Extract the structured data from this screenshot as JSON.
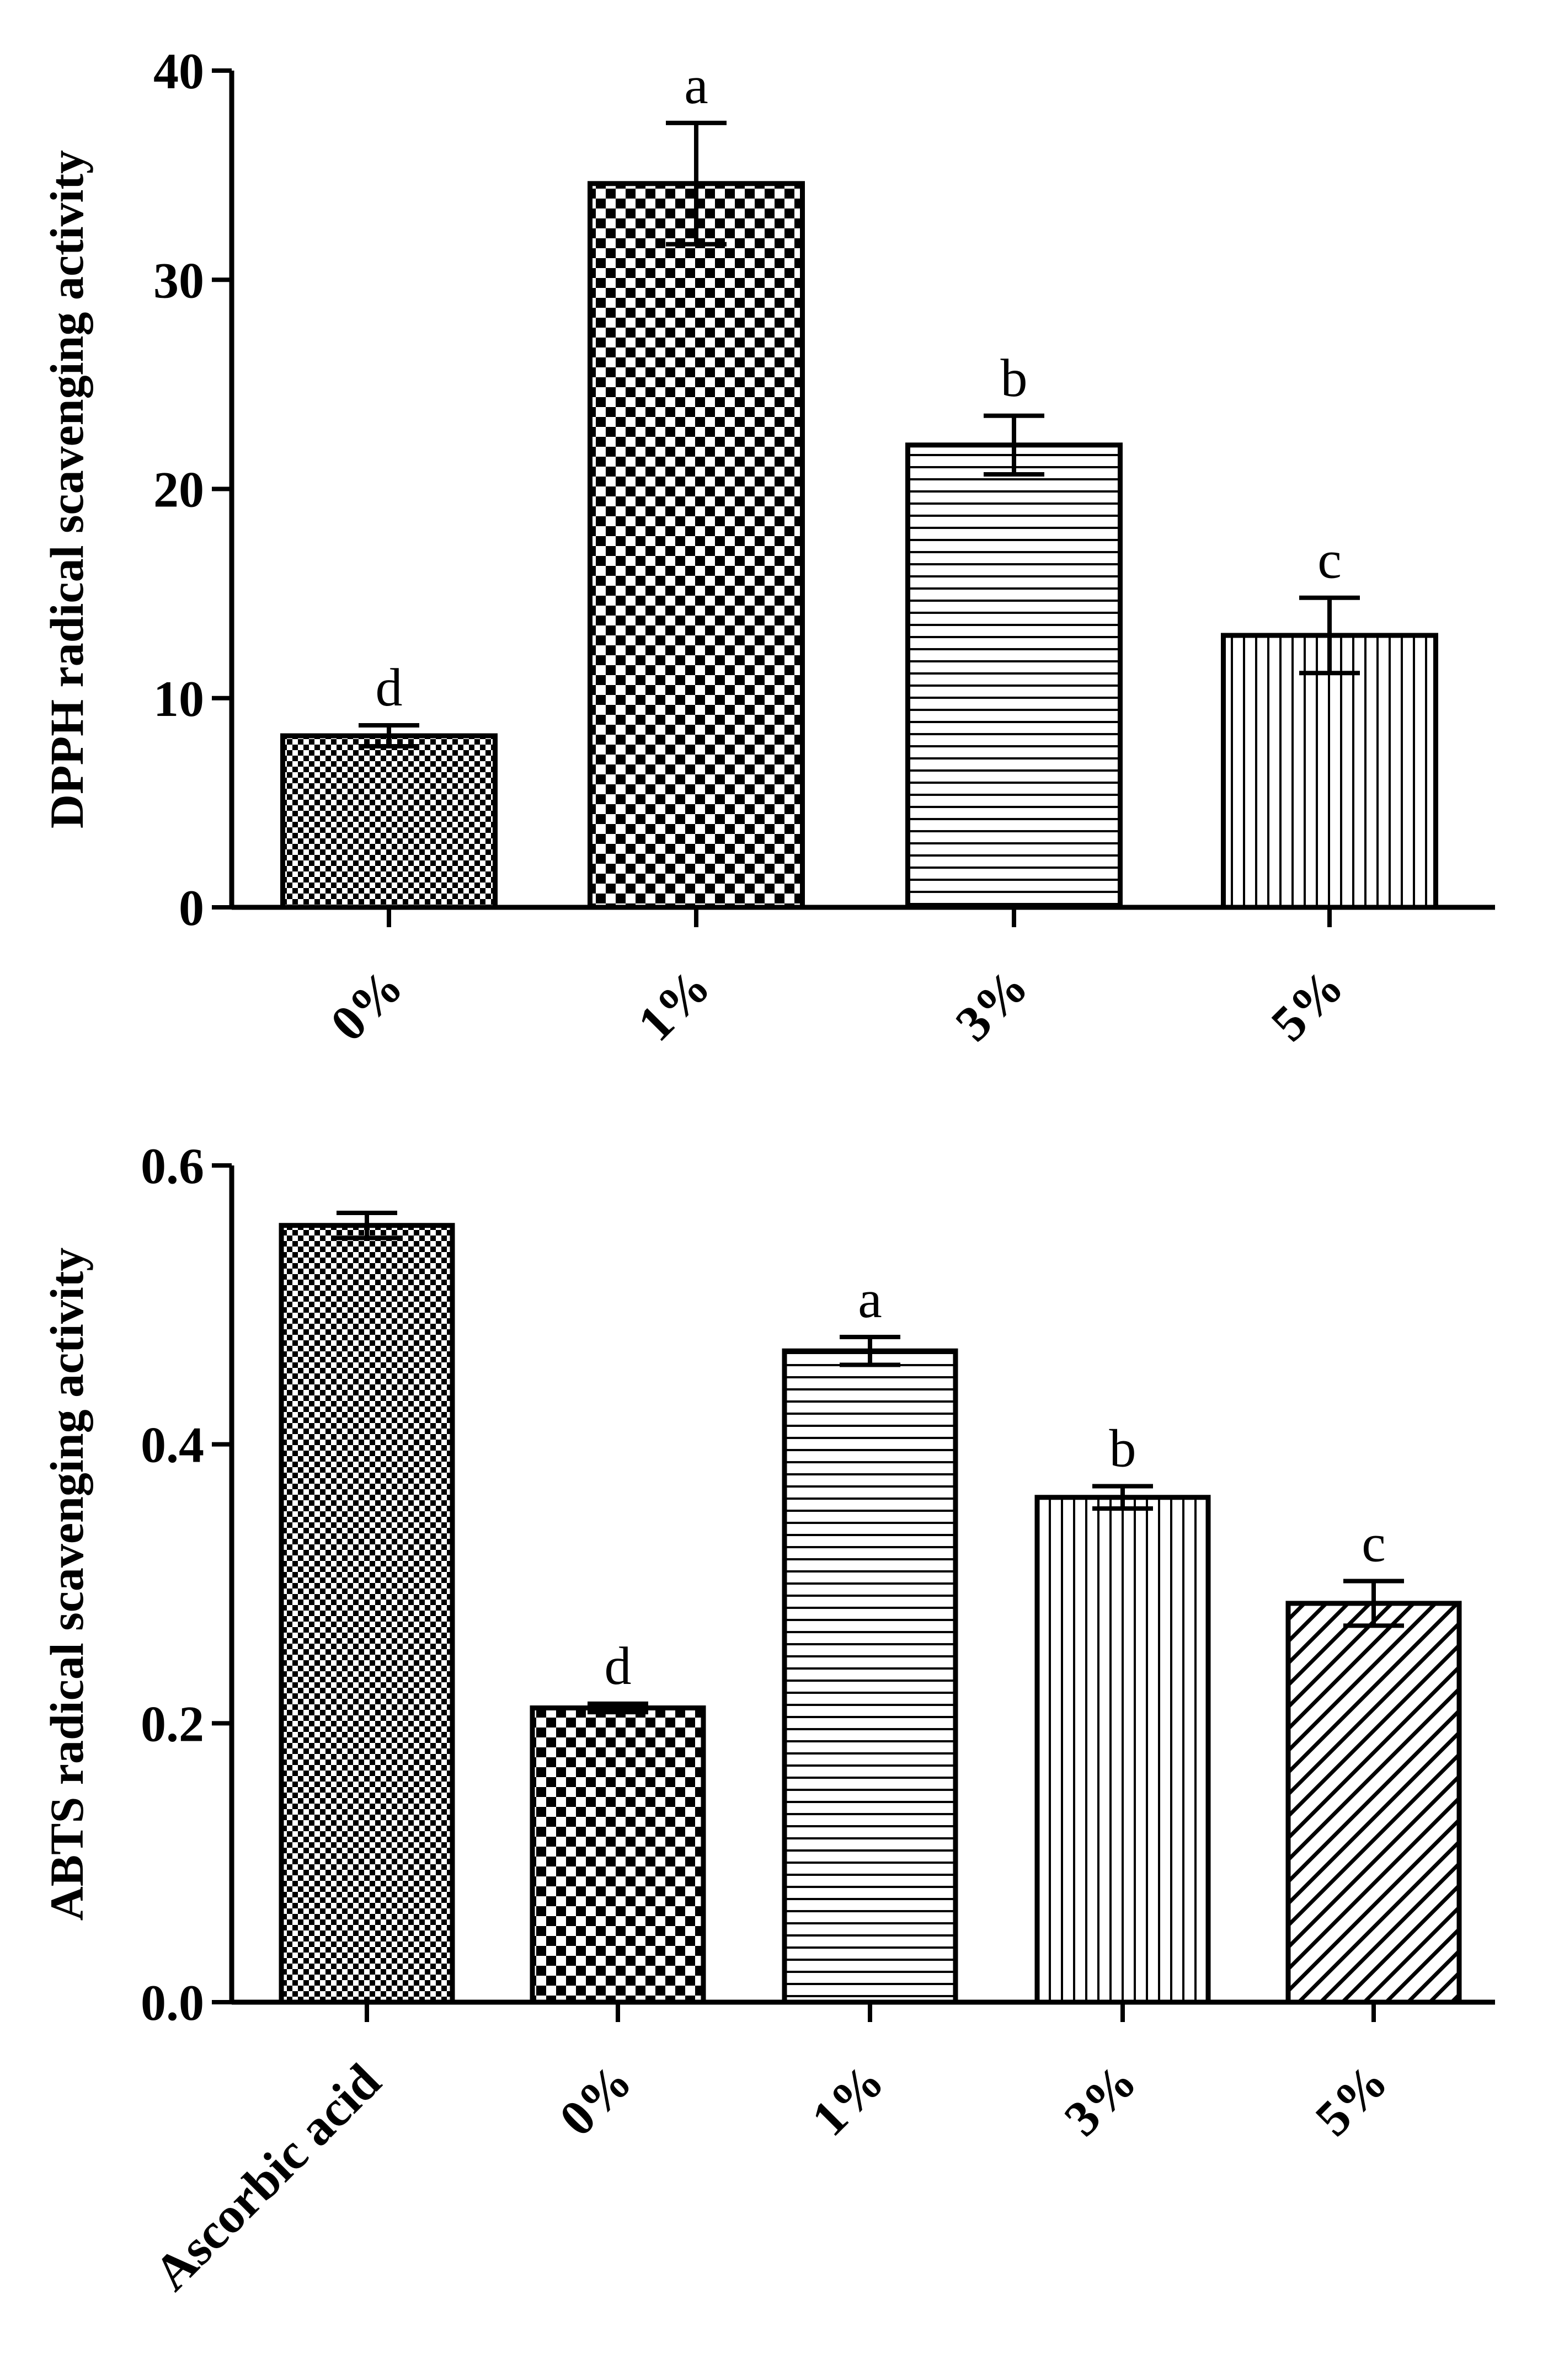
{
  "chart_data": [
    {
      "type": "bar",
      "title": "",
      "xlabel": "",
      "ylabel": "DPPH radical scavenging activity",
      "ylim": [
        0,
        40
      ],
      "yticks": [
        "0",
        "10",
        "20",
        "30",
        "40"
      ],
      "categories": [
        "0%",
        "1%",
        "3%",
        "5%"
      ],
      "values": [
        8.2,
        34.6,
        22.1,
        13.0
      ],
      "errors": [
        0.5,
        2.9,
        1.4,
        1.8
      ],
      "significance": [
        "d",
        "a",
        "b",
        "c"
      ],
      "patterns": [
        "fine-check",
        "coarse-check",
        "hlines",
        "vlines"
      ]
    },
    {
      "type": "bar",
      "title": "",
      "xlabel": "",
      "ylabel": "ABTS radical scavenging activity",
      "ylim": [
        0,
        0.6
      ],
      "yticks": [
        "0.0",
        "0.2",
        "0.4",
        "0.6"
      ],
      "categories": [
        "Ascorbic acid",
        "0%",
        "1%",
        "3%",
        "5%"
      ],
      "values": [
        0.557,
        0.211,
        0.467,
        0.362,
        0.286
      ],
      "errors": [
        0.009,
        0.003,
        0.01,
        0.008,
        0.016
      ],
      "significance": [
        "",
        "d",
        "a",
        "b",
        "c"
      ],
      "patterns": [
        "fine-check",
        "coarse-check",
        "hlines",
        "vlines",
        "diagonal"
      ]
    }
  ]
}
